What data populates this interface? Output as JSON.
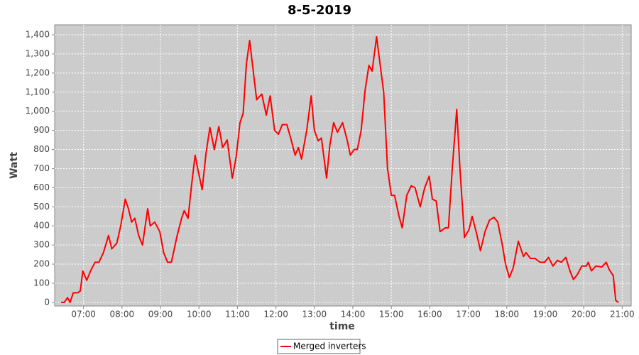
{
  "chart_data": {
    "type": "line",
    "title": "8-5-2019",
    "xlabel": "time",
    "ylabel": "Watt",
    "x": [
      "06:25",
      "06:30",
      "06:35",
      "06:39",
      "06:44",
      "06:51",
      "06:55",
      "06:59",
      "07:05",
      "07:11",
      "07:18",
      "07:24",
      "07:31",
      "07:39",
      "07:44",
      "07:52",
      "07:58",
      "08:05",
      "08:10",
      "08:15",
      "08:20",
      "08:26",
      "08:32",
      "08:40",
      "08:44",
      "08:51",
      "08:59",
      "09:05",
      "09:11",
      "09:17",
      "09:26",
      "09:33",
      "09:37",
      "09:43",
      "09:48",
      "09:54",
      "09:58",
      "10:05",
      "10:11",
      "10:17",
      "10:24",
      "10:31",
      "10:37",
      "10:44",
      "10:52",
      "10:58",
      "11:04",
      "11:09",
      "11:14",
      "11:19",
      "11:25",
      "11:30",
      "11:38",
      "11:45",
      "11:51",
      "11:58",
      "12:04",
      "12:10",
      "12:17",
      "12:23",
      "12:30",
      "12:35",
      "12:40",
      "12:48",
      "12:55",
      "13:00",
      "13:06",
      "13:11",
      "13:19",
      "13:24",
      "13:30",
      "13:36",
      "13:44",
      "13:51",
      "13:56",
      "14:02",
      "14:07",
      "14:13",
      "14:19",
      "14:25",
      "14:30",
      "14:37",
      "14:42",
      "14:48",
      "14:54",
      "15:00",
      "15:05",
      "15:12",
      "15:17",
      "15:24",
      "15:31",
      "15:37",
      "15:45",
      "15:52",
      "15:59",
      "16:04",
      "16:10",
      "16:16",
      "16:24",
      "16:29",
      "16:35",
      "16:42",
      "16:47",
      "16:54",
      "17:01",
      "17:06",
      "17:13",
      "17:19",
      "17:26",
      "17:33",
      "17:40",
      "17:46",
      "17:53",
      "17:58",
      "18:04",
      "18:10",
      "18:18",
      "18:26",
      "18:30",
      "18:37",
      "18:44",
      "18:52",
      "18:59",
      "19:05",
      "19:12",
      "19:19",
      "19:25",
      "19:32",
      "19:39",
      "19:44",
      "19:50",
      "19:57",
      "20:04",
      "20:07",
      "20:12",
      "20:19",
      "20:28",
      "20:35",
      "20:40",
      "20:46",
      "20:50",
      "20:54"
    ],
    "series": [
      {
        "name": "Merged inverters",
        "color": "#ff0000",
        "values": [
          0,
          0,
          25,
          0,
          50,
          50,
          60,
          165,
          115,
          165,
          210,
          210,
          260,
          350,
          280,
          310,
          400,
          540,
          490,
          420,
          440,
          350,
          300,
          490,
          400,
          420,
          370,
          260,
          210,
          210,
          350,
          440,
          480,
          440,
          600,
          770,
          700,
          590,
          780,
          915,
          800,
          920,
          810,
          850,
          650,
          760,
          940,
          990,
          1250,
          1370,
          1200,
          1060,
          1090,
          980,
          1080,
          900,
          880,
          930,
          930,
          860,
          770,
          810,
          750,
          900,
          1080,
          900,
          845,
          860,
          650,
          820,
          940,
          890,
          940,
          850,
          770,
          800,
          800,
          900,
          1110,
          1240,
          1210,
          1390,
          1260,
          1100,
          700,
          560,
          560,
          450,
          390,
          560,
          610,
          600,
          500,
          600,
          660,
          540,
          530,
          370,
          390,
          390,
          700,
          1010,
          700,
          340,
          380,
          450,
          360,
          270,
          370,
          430,
          445,
          420,
          300,
          200,
          130,
          180,
          320,
          240,
          260,
          230,
          230,
          210,
          210,
          235,
          190,
          220,
          210,
          235,
          160,
          120,
          145,
          190,
          190,
          210,
          165,
          190,
          185,
          210,
          170,
          140,
          10,
          0
        ]
      }
    ],
    "xlim": [
      "06:15",
      "21:14"
    ],
    "xticks": [
      "07:00",
      "08:00",
      "09:00",
      "10:00",
      "11:00",
      "12:00",
      "13:00",
      "14:00",
      "15:00",
      "16:00",
      "17:00",
      "18:00",
      "19:00",
      "20:00",
      "21:00"
    ],
    "ylim": [
      -19,
      1452
    ],
    "yticks": [
      0,
      100,
      200,
      300,
      400,
      500,
      600,
      700,
      800,
      900,
      {
        "value": 1000,
        "label": "1,000"
      },
      {
        "value": 1100,
        "label": "1,100"
      },
      {
        "value": 1200,
        "label": "1,200"
      },
      {
        "value": 1300,
        "label": "1,300"
      },
      {
        "value": 1400,
        "label": "1,400"
      }
    ],
    "grid": true
  }
}
